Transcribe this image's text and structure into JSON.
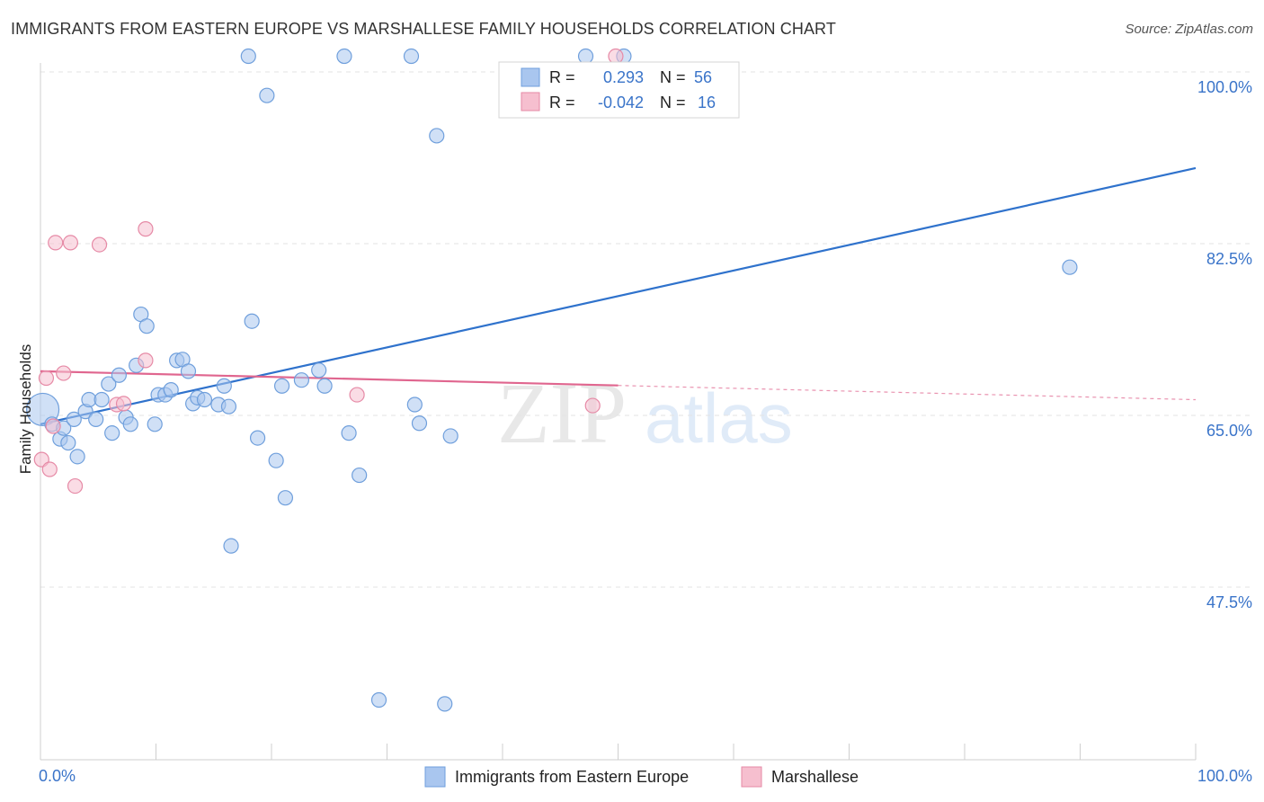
{
  "header": {
    "title": "IMMIGRANTS FROM EASTERN EUROPE VS MARSHALLESE FAMILY HOUSEHOLDS CORRELATION CHART",
    "source": "Source: ZipAtlas.com"
  },
  "watermark": {
    "zip": "ZIP",
    "atlas": "atlas"
  },
  "legend_box": {
    "rows": [
      {
        "r_label": "R =",
        "r_value": "0.293",
        "n_label": "N =",
        "n_value": "56"
      },
      {
        "r_label": "R =",
        "r_value": "-0.042",
        "n_label": "N =",
        "n_value": "16"
      }
    ]
  },
  "colors": {
    "blue_fill": "#a9c6ef",
    "blue_stroke": "#6f9fdc",
    "blue_line": "#2f72cc",
    "pink_fill": "#f6bfcf",
    "pink_stroke": "#e68aa6",
    "pink_line": "#e0668f",
    "value_text": "#3a74c9",
    "grid": "#e3e3e3"
  },
  "chart_data": {
    "type": "scatter",
    "title": "IMMIGRANTS FROM EASTERN EUROPE VS MARSHALLESE FAMILY HOUSEHOLDS CORRELATION CHART",
    "xlabel": "",
    "ylabel": "Family Households",
    "xlim": [
      0,
      100
    ],
    "ylim": [
      31.6,
      100
    ],
    "x_tick_labels": [
      "0.0%",
      "100.0%"
    ],
    "y_ticks": [
      47.5,
      65.0,
      82.5,
      100.0
    ],
    "y_tick_labels": [
      "47.5%",
      "65.0%",
      "82.5%",
      "100.0%"
    ],
    "grid": true,
    "legend": [
      "Immigrants from Eastern Europe",
      "Marshallese"
    ],
    "series": [
      {
        "name": "Immigrants from Eastern Europe",
        "color": "#a9c6ef",
        "r": 0.293,
        "n": 56,
        "trend": {
          "x": [
            0,
            100
          ],
          "y": [
            64.1,
            90.2
          ],
          "dashed_from": null
        },
        "points": [
          {
            "x": 0.2,
            "y": 65.6,
            "big": true
          },
          {
            "x": 1.0,
            "y": 64.1
          },
          {
            "x": 1.7,
            "y": 62.6
          },
          {
            "x": 2.0,
            "y": 63.7
          },
          {
            "x": 2.4,
            "y": 62.2
          },
          {
            "x": 2.9,
            "y": 64.6
          },
          {
            "x": 3.2,
            "y": 60.8
          },
          {
            "x": 3.9,
            "y": 65.4
          },
          {
            "x": 4.2,
            "y": 66.6
          },
          {
            "x": 4.8,
            "y": 64.6
          },
          {
            "x": 5.3,
            "y": 66.6
          },
          {
            "x": 5.9,
            "y": 68.2
          },
          {
            "x": 6.2,
            "y": 63.2
          },
          {
            "x": 6.8,
            "y": 69.1
          },
          {
            "x": 7.4,
            "y": 64.8
          },
          {
            "x": 7.8,
            "y": 64.1
          },
          {
            "x": 8.3,
            "y": 70.1
          },
          {
            "x": 8.7,
            "y": 75.3
          },
          {
            "x": 9.2,
            "y": 74.1
          },
          {
            "x": 9.9,
            "y": 64.1
          },
          {
            "x": 10.2,
            "y": 67.1
          },
          {
            "x": 10.8,
            "y": 67.1
          },
          {
            "x": 11.3,
            "y": 67.6
          },
          {
            "x": 11.8,
            "y": 70.6
          },
          {
            "x": 12.3,
            "y": 70.7
          },
          {
            "x": 12.8,
            "y": 69.5
          },
          {
            "x": 13.2,
            "y": 66.2
          },
          {
            "x": 13.6,
            "y": 66.8
          },
          {
            "x": 14.2,
            "y": 66.6
          },
          {
            "x": 15.4,
            "y": 66.1
          },
          {
            "x": 15.9,
            "y": 68.0
          },
          {
            "x": 16.3,
            "y": 65.9
          },
          {
            "x": 16.5,
            "y": 51.7
          },
          {
            "x": 18.0,
            "y": 101.6
          },
          {
            "x": 18.3,
            "y": 74.6
          },
          {
            "x": 18.8,
            "y": 62.7
          },
          {
            "x": 19.6,
            "y": 97.6
          },
          {
            "x": 20.4,
            "y": 60.4
          },
          {
            "x": 20.9,
            "y": 68.0
          },
          {
            "x": 21.2,
            "y": 56.6
          },
          {
            "x": 22.6,
            "y": 68.6
          },
          {
            "x": 24.1,
            "y": 69.6
          },
          {
            "x": 24.6,
            "y": 68.0
          },
          {
            "x": 26.3,
            "y": 101.6
          },
          {
            "x": 26.7,
            "y": 63.2
          },
          {
            "x": 27.6,
            "y": 58.9
          },
          {
            "x": 29.3,
            "y": 36.0
          },
          {
            "x": 32.1,
            "y": 101.6
          },
          {
            "x": 32.4,
            "y": 66.1
          },
          {
            "x": 32.8,
            "y": 64.2
          },
          {
            "x": 34.3,
            "y": 93.5
          },
          {
            "x": 35.0,
            "y": 35.6
          },
          {
            "x": 35.5,
            "y": 62.9
          },
          {
            "x": 47.2,
            "y": 101.6
          },
          {
            "x": 50.5,
            "y": 101.6
          },
          {
            "x": 89.1,
            "y": 80.1
          }
        ]
      },
      {
        "name": "Marshallese",
        "color": "#f6bfcf",
        "r": -0.042,
        "n": 16,
        "trend": {
          "x": [
            0,
            100
          ],
          "y": [
            69.5,
            66.6
          ],
          "dashed_from": 50
        },
        "points": [
          {
            "x": 0.1,
            "y": 60.5
          },
          {
            "x": 0.5,
            "y": 68.8
          },
          {
            "x": 0.8,
            "y": 59.5
          },
          {
            "x": 1.1,
            "y": 63.9
          },
          {
            "x": 1.3,
            "y": 82.6
          },
          {
            "x": 2.0,
            "y": 69.3
          },
          {
            "x": 2.6,
            "y": 82.6
          },
          {
            "x": 3.0,
            "y": 57.8
          },
          {
            "x": 5.1,
            "y": 82.4
          },
          {
            "x": 6.6,
            "y": 66.1
          },
          {
            "x": 7.2,
            "y": 66.2
          },
          {
            "x": 9.1,
            "y": 84.0
          },
          {
            "x": 9.1,
            "y": 70.6
          },
          {
            "x": 27.4,
            "y": 67.1
          },
          {
            "x": 47.8,
            "y": 66.0
          },
          {
            "x": 49.8,
            "y": 101.6
          }
        ]
      }
    ]
  }
}
